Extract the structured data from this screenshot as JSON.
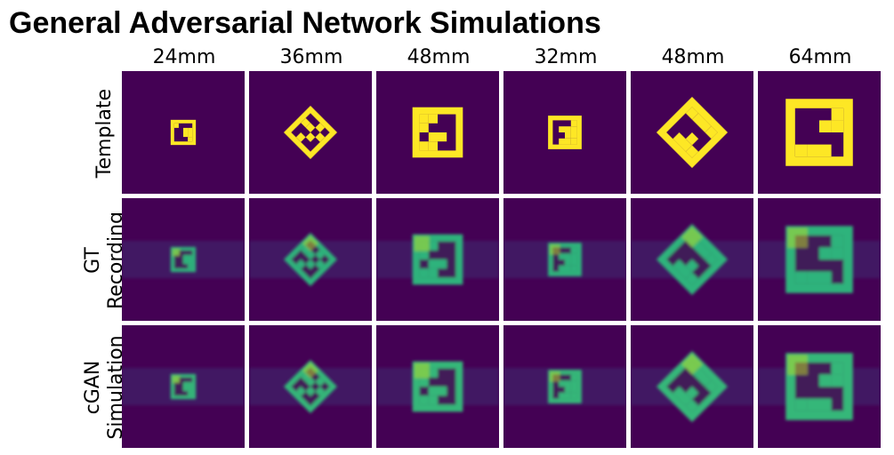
{
  "title": "General Adversarial Network Simulations",
  "columns": [
    "24mm",
    "36mm",
    "48mm",
    "32mm",
    "48mm",
    "64mm"
  ],
  "rows": [
    {
      "id": "template",
      "lines": [
        "Template"
      ]
    },
    {
      "id": "gt-recording",
      "lines": [
        "GT",
        "Recording"
      ]
    },
    {
      "id": "cgan-simulation",
      "lines": [
        "cGAN",
        "Simulation"
      ]
    }
  ],
  "markers": [
    {
      "shape": "square",
      "scale": 24
    },
    {
      "shape": "diamond",
      "scale": 36
    },
    {
      "shape": "square",
      "scale": 48
    },
    {
      "shape": "square",
      "scale": 32
    },
    {
      "shape": "diamond",
      "scale": 48
    },
    {
      "shape": "square",
      "scale": 64
    }
  ],
  "colors": {
    "background": "#440154",
    "template_fill": "#fde725",
    "recording_fill": "#2eb37c",
    "recording_bright": "#bddf26",
    "simulation_fill": "#35b779",
    "haze": "#3b528b"
  }
}
